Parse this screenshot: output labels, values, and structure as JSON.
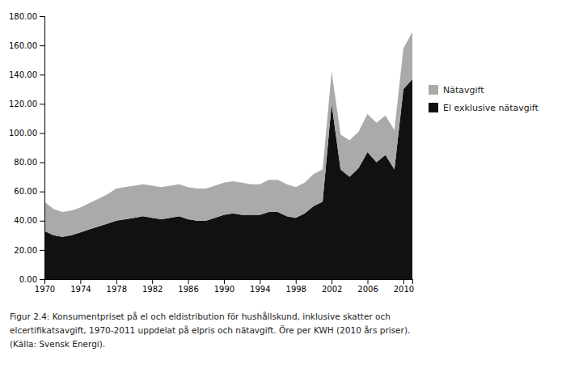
{
  "chart_data": {
    "type": "area",
    "stacked": true,
    "x": [
      1970,
      1971,
      1972,
      1973,
      1974,
      1975,
      1976,
      1977,
      1978,
      1979,
      1980,
      1981,
      1982,
      1983,
      1984,
      1985,
      1986,
      1987,
      1988,
      1989,
      1990,
      1991,
      1992,
      1993,
      1994,
      1995,
      1996,
      1997,
      1998,
      1999,
      2000,
      2001,
      2002,
      2003,
      2004,
      2005,
      2006,
      2007,
      2008,
      2009,
      2010,
      2011
    ],
    "series": [
      {
        "name": "El exklusive nätavgift",
        "color": "#111111",
        "values": [
          33,
          30,
          29,
          30,
          32,
          34,
          36,
          38,
          40,
          41,
          42,
          43,
          42,
          41,
          42,
          43,
          41,
          40,
          40,
          42,
          44,
          45,
          44,
          44,
          44,
          46,
          46,
          43,
          42,
          45,
          50,
          53,
          120,
          75,
          70,
          76,
          87,
          80,
          85,
          75,
          130,
          137
        ]
      },
      {
        "name": "Nätavgift",
        "color": "#aaaaaa",
        "values": [
          20,
          18,
          17,
          17,
          17,
          18,
          19,
          20,
          22,
          22,
          22,
          22,
          22,
          22,
          22,
          22,
          22,
          22,
          22,
          22,
          22,
          22,
          22,
          21,
          21,
          22,
          22,
          22,
          21,
          21,
          22,
          22,
          22,
          24,
          25,
          25,
          26,
          27,
          27,
          27,
          28,
          32
        ]
      }
    ],
    "xlim": [
      1970,
      2011
    ],
    "xticks": [
      1970,
      1974,
      1978,
      1982,
      1986,
      1990,
      1994,
      1998,
      2002,
      2006,
      2010
    ],
    "ylim": [
      0,
      180
    ],
    "yticks": [
      {
        "value": 0,
        "label": "0.00"
      },
      {
        "value": 20,
        "label": "20.00"
      },
      {
        "value": 40,
        "label": "40.00"
      },
      {
        "value": 60,
        "label": "60.00"
      },
      {
        "value": 80,
        "label": "80.00"
      },
      {
        "value": 100,
        "label": "100.00"
      },
      {
        "value": 120,
        "label": "120.00"
      },
      {
        "value": 140,
        "label": "140.00"
      },
      {
        "value": 160,
        "label": "160.00"
      },
      {
        "value": 180,
        "label": "180.00"
      }
    ],
    "grid": false,
    "legend": "right",
    "annotations": [
      "Figur 2.4: Konsumentpriset på el och eldistribution för hushållskund, inklusive skatter och",
      "elcertifikatsavgift, 1970-2011 uppdelat på elpris och nätavgift. Öre per KWH (2010 års priser).",
      "(Källa: Svensk Energi)."
    ]
  }
}
